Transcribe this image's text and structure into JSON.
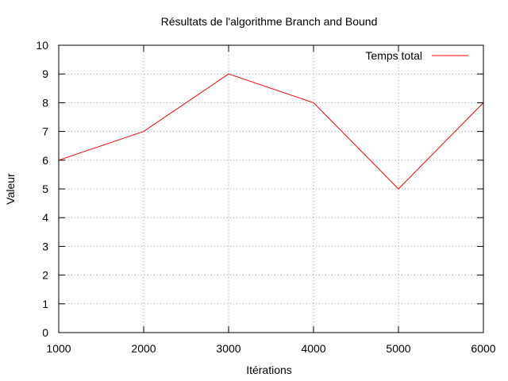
{
  "chart_data": {
    "type": "line",
    "title": "Résultats de l'algorithme Branch and Bound",
    "xlabel": "Itérations",
    "ylabel": "Valeur",
    "x": [
      1000,
      2000,
      3000,
      4000,
      5000,
      6000
    ],
    "series": [
      {
        "name": "Temps total",
        "values": [
          6,
          7,
          9,
          8,
          5,
          8
        ],
        "color": "#ff0000"
      }
    ],
    "xlim": [
      1000,
      6000
    ],
    "ylim": [
      0,
      10
    ],
    "x_ticks": [
      1000,
      2000,
      3000,
      4000,
      5000,
      6000
    ],
    "y_ticks": [
      0,
      1,
      2,
      3,
      4,
      5,
      6,
      7,
      8,
      9,
      10
    ],
    "grid": true,
    "legend_position": "top-right"
  }
}
